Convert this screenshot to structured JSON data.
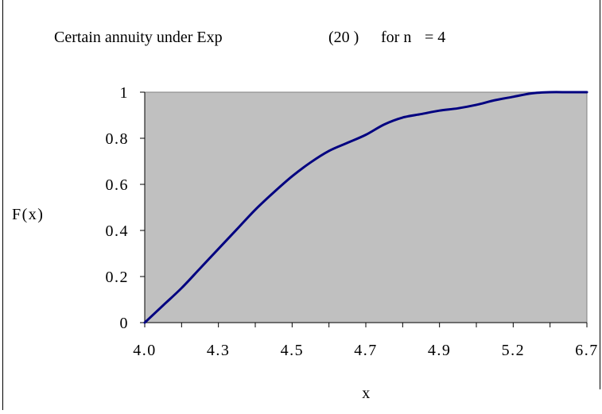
{
  "chart_data": {
    "type": "line",
    "title_parts": [
      "Certain annuity under Exp",
      "(20 )",
      "for n",
      "= 4"
    ],
    "xlabel": "x",
    "ylabel": "F(x)",
    "categories": [
      "4.0",
      "4.3",
      "4.5",
      "4.7",
      "4.9",
      "5.2",
      "6.7"
    ],
    "y_ticks": [
      "0",
      "0.2",
      "0.4",
      "0.6",
      "0.8",
      "1"
    ],
    "ylim": [
      0,
      1
    ],
    "grid": false,
    "legend": "none",
    "plot_background": "#C0C0C0",
    "line_color": "#000080",
    "series": [
      {
        "x": [
          0,
          0.25,
          0.5,
          0.75,
          1.0,
          1.25,
          1.5,
          1.75,
          2.0,
          2.25,
          2.5,
          2.75,
          3.0,
          3.25,
          3.5,
          3.75,
          4.0,
          4.25,
          4.5,
          4.75,
          5.0,
          5.25,
          5.5,
          5.75,
          6.0
        ],
        "values": [
          0.0,
          0.075,
          0.15,
          0.235,
          0.32,
          0.405,
          0.49,
          0.565,
          0.635,
          0.695,
          0.745,
          0.78,
          0.815,
          0.86,
          0.89,
          0.905,
          0.92,
          0.93,
          0.945,
          0.965,
          0.98,
          0.995,
          1.0,
          1.0,
          1.0
        ]
      }
    ]
  }
}
